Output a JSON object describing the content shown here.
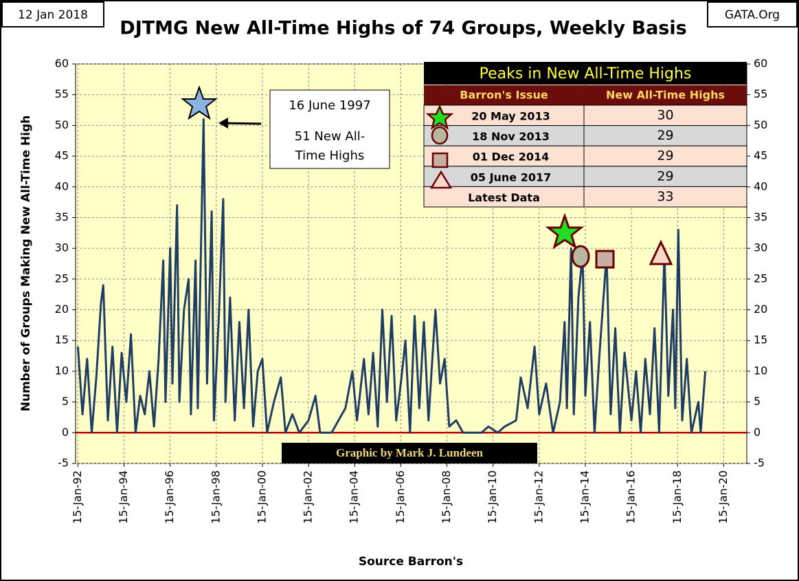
{
  "chart_data": {
    "type": "line",
    "title": "DJTMG New All-Time Highs of 74 Groups, Weekly Basis",
    "date_label": "12 Jan 2018",
    "site_label": "GATA.Org",
    "ylabel": "Number of Groups Making New  All-Time High",
    "xlabel": "Source Barron's",
    "credit": "Graphic by Mark J. Lundeen",
    "annotation": [
      "16 June 1997",
      "51 New All-",
      "Time Highs"
    ],
    "color": "#1f3d63",
    "x": [
      1992.0,
      1992.2,
      1992.4,
      1992.6,
      1992.8,
      1993.0,
      1993.1,
      1993.3,
      1993.5,
      1993.7,
      1993.9,
      1994.1,
      1994.3,
      1994.5,
      1994.7,
      1994.9,
      1995.1,
      1995.3,
      1995.5,
      1995.7,
      1995.8,
      1996.0,
      1996.1,
      1996.3,
      1996.4,
      1996.6,
      1996.8,
      1996.9,
      1997.1,
      1997.2,
      1997.45,
      1997.6,
      1997.8,
      1997.9,
      1998.1,
      1998.3,
      1998.4,
      1998.6,
      1998.8,
      1999.0,
      1999.2,
      1999.4,
      1999.6,
      1999.8,
      2000.0,
      2000.2,
      2000.5,
      2000.8,
      2001.0,
      2001.3,
      2001.6,
      2002.0,
      2002.3,
      2002.5,
      2003.0,
      2003.3,
      2003.6,
      2003.9,
      2004.1,
      2004.4,
      2004.6,
      2004.8,
      2005.0,
      2005.2,
      2005.4,
      2005.6,
      2005.8,
      2006.0,
      2006.2,
      2006.4,
      2006.6,
      2006.8,
      2007.0,
      2007.2,
      2007.5,
      2007.7,
      2007.9,
      2008.1,
      2008.4,
      2008.7,
      2009.0,
      2009.5,
      2009.8,
      2010.2,
      2010.5,
      2011.0,
      2011.2,
      2011.5,
      2011.8,
      2012.0,
      2012.3,
      2012.6,
      2012.9,
      2013.1,
      2013.2,
      2013.38,
      2013.5,
      2013.7,
      2013.88,
      2014.0,
      2014.2,
      2014.4,
      2014.6,
      2014.92,
      2015.1,
      2015.3,
      2015.5,
      2015.7,
      2016.0,
      2016.2,
      2016.4,
      2016.6,
      2016.8,
      2017.0,
      2017.2,
      2017.43,
      2017.6,
      2017.8,
      2017.9,
      2018.03,
      2018.2,
      2018.4,
      2018.6,
      2018.9,
      2019.0,
      2019.2
    ],
    "values": [
      14,
      3,
      12,
      0,
      9,
      21,
      24,
      2,
      14,
      0,
      13,
      5,
      16,
      0,
      6,
      3,
      10,
      1,
      12,
      28,
      5,
      30,
      8,
      37,
      5,
      20,
      25,
      3,
      28,
      4,
      51,
      8,
      36,
      2,
      18,
      38,
      5,
      22,
      2,
      18,
      4,
      20,
      1,
      10,
      12,
      0,
      5,
      9,
      0,
      3,
      0,
      2,
      6,
      0,
      0,
      2,
      4,
      10,
      2,
      12,
      3,
      13,
      1,
      20,
      5,
      19,
      2,
      8,
      15,
      0,
      19,
      4,
      18,
      2,
      20,
      8,
      12,
      1,
      2,
      0,
      0,
      0,
      1,
      0,
      1,
      2,
      9,
      4,
      14,
      3,
      8,
      0,
      5,
      18,
      4,
      30,
      3,
      22,
      29,
      6,
      18,
      0,
      12,
      29,
      3,
      17,
      0,
      13,
      2,
      10,
      0,
      12,
      3,
      17,
      0,
      29,
      6,
      20,
      4,
      33,
      2,
      12,
      0,
      5,
      0,
      10
    ],
    "xlim": [
      1991.9,
      2021.0
    ],
    "xticks": [
      {
        "value": 1992,
        "label": "15-Jan-92"
      },
      {
        "value": 1994,
        "label": "15-Jan-94"
      },
      {
        "value": 1996,
        "label": "15-Jan-96"
      },
      {
        "value": 1998,
        "label": "15-Jan-98"
      },
      {
        "value": 2000,
        "label": "15-Jan-00"
      },
      {
        "value": 2002,
        "label": "15-Jan-02"
      },
      {
        "value": 2004,
        "label": "15-Jan-04"
      },
      {
        "value": 2006,
        "label": "15-Jan-06"
      },
      {
        "value": 2008,
        "label": "15-Jan-08"
      },
      {
        "value": 2010,
        "label": "15-Jan-10"
      },
      {
        "value": 2012,
        "label": "15-Jan-12"
      },
      {
        "value": 2014,
        "label": "15-Jan-14"
      },
      {
        "value": 2016,
        "label": "15-Jan-16"
      },
      {
        "value": 2018,
        "label": "15-Jan-18"
      },
      {
        "value": 2020,
        "label": "15-Jan-20"
      }
    ],
    "ylim": [
      -5,
      60
    ],
    "yticks": [
      -5,
      0,
      5,
      10,
      15,
      20,
      25,
      30,
      35,
      40,
      45,
      50,
      55,
      60
    ],
    "y2lim": [
      -5,
      60
    ],
    "y2ticks": [
      -5,
      0,
      5,
      10,
      15,
      20,
      25,
      30,
      35,
      40,
      45,
      50,
      55,
      60
    ],
    "grid": true,
    "table": {
      "title": "Peaks in New All-Time Highs",
      "headers": [
        "Barron's Issue",
        "New All-Time Highs"
      ],
      "rows": [
        [
          "20 May 2013",
          "30"
        ],
        [
          "18 Nov 2013",
          "29"
        ],
        [
          "01 Dec 2014",
          "29"
        ],
        [
          "05 June 2017",
          "29"
        ],
        [
          "Latest Data",
          "33"
        ]
      ]
    }
  }
}
